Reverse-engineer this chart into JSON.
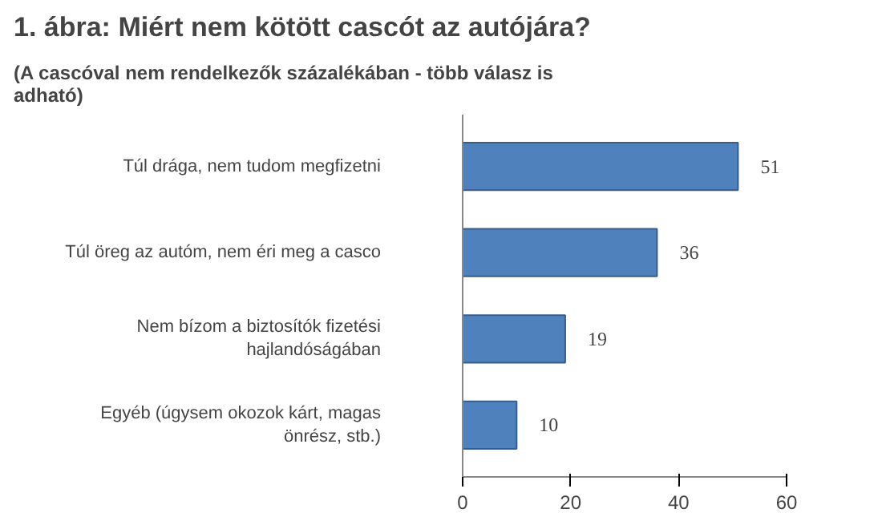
{
  "chart_data": {
    "type": "bar",
    "orientation": "horizontal",
    "title": "1. ábra: Miért nem kötött cascót az autójára?",
    "subtitle": "(A cascóval nem rendelkezők százalékában - több válasz is\nadható)",
    "categories": [
      "Túl drága, nem tudom megfizetni",
      "Túl öreg az autóm, nem éri meg a casco",
      "Nem bízom a biztosítók fizetési\nhajlandóságában",
      "Egyéb (úgysem okozok kárt, magas\nönrész, stb.)"
    ],
    "values": [
      51,
      36,
      19,
      10
    ],
    "color": "#4f81bd",
    "data_labels": true,
    "xlim": [
      0,
      60
    ],
    "xticks": [
      0,
      20,
      40,
      60
    ],
    "grid": false
  }
}
